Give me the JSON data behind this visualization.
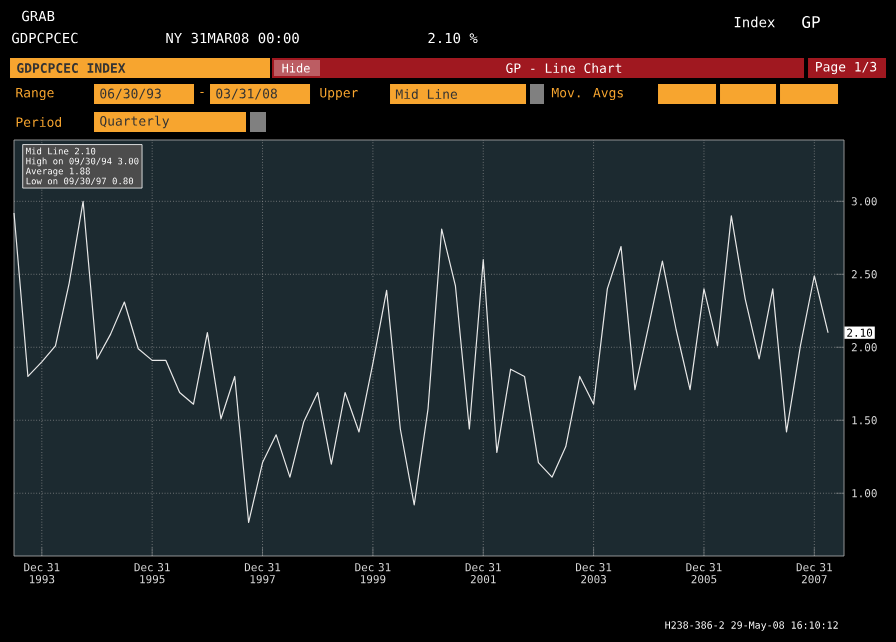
{
  "chart_data": {
    "type": "line",
    "title": "GDPCPCEC INDEX",
    "x": [
      "1993-06-30",
      "1993-09-30",
      "1993-12-31",
      "1994-03-31",
      "1994-06-30",
      "1994-09-30",
      "1994-12-31",
      "1995-03-31",
      "1995-06-30",
      "1995-09-30",
      "1995-12-31",
      "1996-03-31",
      "1996-06-30",
      "1996-09-30",
      "1996-12-31",
      "1997-03-31",
      "1997-06-30",
      "1997-09-30",
      "1997-12-31",
      "1998-03-31",
      "1998-06-30",
      "1998-09-30",
      "1998-12-31",
      "1999-03-31",
      "1999-06-30",
      "1999-09-30",
      "1999-12-31",
      "2000-03-31",
      "2000-06-30",
      "2000-09-30",
      "2000-12-31",
      "2001-03-31",
      "2001-06-30",
      "2001-09-30",
      "2001-12-31",
      "2002-03-31",
      "2002-06-30",
      "2002-09-30",
      "2002-12-31",
      "2003-03-31",
      "2003-06-30",
      "2003-09-30",
      "2003-12-31",
      "2004-03-31",
      "2004-06-30",
      "2004-09-30",
      "2004-12-31",
      "2005-03-31",
      "2005-06-30",
      "2005-09-30",
      "2005-12-31",
      "2006-03-31",
      "2006-06-30",
      "2006-09-30",
      "2006-12-31",
      "2007-03-31",
      "2007-06-30",
      "2007-09-30",
      "2007-12-31",
      "2008-03-31"
    ],
    "series": [
      {
        "color": "#e8e8e8",
        "values": [
          2.92,
          1.8,
          1.9,
          2.01,
          2.44,
          3.0,
          1.92,
          2.09,
          2.31,
          1.99,
          1.91,
          1.91,
          1.69,
          1.61,
          2.1,
          1.51,
          1.8,
          0.8,
          1.21,
          1.4,
          1.11,
          1.49,
          1.69,
          1.2,
          1.69,
          1.42,
          1.89,
          2.39,
          1.44,
          0.92,
          1.58,
          2.81,
          2.42,
          1.44,
          2.6,
          1.28,
          1.85,
          1.8,
          1.21,
          1.11,
          1.32,
          1.8,
          1.61,
          2.4,
          2.69,
          1.71,
          2.15,
          2.59,
          2.12,
          1.71,
          2.4,
          2.01,
          2.9,
          2.33,
          1.92,
          2.4,
          1.42,
          2.01,
          2.49,
          2.1
        ]
      }
    ],
    "xlim": [
      "1993-06-30",
      "2008-07-15"
    ],
    "xticks": [
      {
        "value": "1993-12-31",
        "label": "Dec 31 1993"
      },
      {
        "value": "1995-12-31",
        "label": "Dec 31 1995"
      },
      {
        "value": "1997-12-31",
        "label": "Dec 31 1997"
      },
      {
        "value": "1999-12-31",
        "label": "Dec 31 1999"
      },
      {
        "value": "2001-12-31",
        "label": "Dec 31 2001"
      },
      {
        "value": "2003-12-31",
        "label": "Dec 31 2003"
      },
      {
        "value": "2005-12-31",
        "label": "Dec 31 2005"
      },
      {
        "value": "2007-12-31",
        "label": "Dec 31 2007"
      }
    ],
    "ylim": [
      0.57,
      3.42
    ],
    "yticks": [
      {
        "value": 1,
        "label": "1.00"
      },
      {
        "value": 1.5,
        "label": "1.50"
      },
      {
        "value": 2,
        "label": "2.00"
      },
      {
        "value": 2.5,
        "label": "2.50"
      },
      {
        "value": 3,
        "label": "3.00"
      }
    ],
    "grid": true,
    "marker": "none",
    "line_style": "solid",
    "annotations": [
      "GRAB",
      "GDPCPCEC",
      "NY 31MAR08 00:00",
      "2.10 %",
      "Index",
      "GP",
      "Hide",
      "GP - Line Chart",
      "Page 1/3",
      "Range",
      "06/30/93",
      "-",
      "03/31/08",
      "Upper",
      "Mid Line",
      "Mov. Avgs",
      "Period",
      "Quarterly",
      "Mid Line 2.10",
      "High on 09/30/94 3.00",
      "Average 1.88",
      "Low on 09/30/97 0.80",
      "H238-386-2 29-May-08 16:10:12",
      {
        "text": "2.10",
        "x": "2008-03-31",
        "y": 2.1
      }
    ]
  }
}
